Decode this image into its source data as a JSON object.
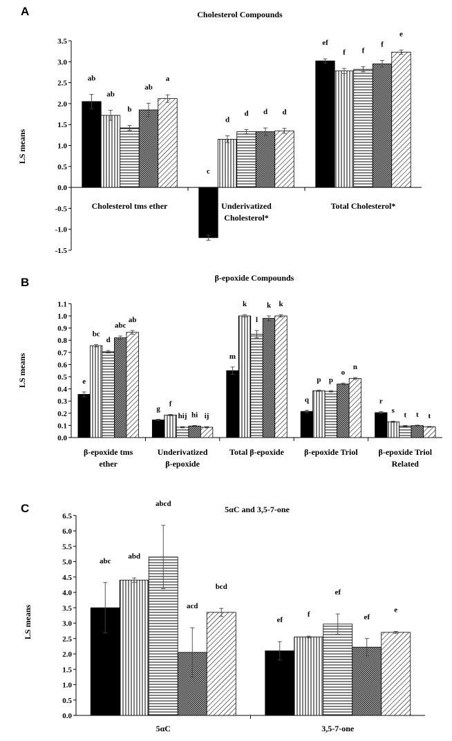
{
  "chart_data": [
    {
      "panel": "A",
      "type": "bar",
      "title": "Cholesterol Compounds",
      "ylabel": "LS means",
      "ylim": [
        -1.5,
        3.5
      ],
      "yticks": [
        "-1.5",
        "-1.0",
        "-0.5",
        "0.0",
        "0.5",
        "1.0",
        "1.5",
        "2.0",
        "2.5",
        "3.0",
        "3.5"
      ],
      "categories": [
        [
          "Cholesterol tms ether"
        ],
        [
          "Underivatized",
          "Cholesterol*"
        ],
        [
          "Total Cholesterol*"
        ]
      ],
      "values": [
        [
          2.05,
          1.72,
          1.42,
          1.85,
          2.12
        ],
        [
          -1.2,
          1.15,
          1.33,
          1.33,
          1.35
        ],
        [
          3.02,
          2.78,
          2.82,
          2.95,
          3.23
        ]
      ],
      "errors": [
        [
          0.17,
          0.12,
          0.06,
          0.16,
          0.09
        ],
        [
          0.06,
          0.08,
          0.05,
          0.09,
          0.06
        ],
        [
          0.05,
          0.06,
          0.06,
          0.08,
          0.05
        ]
      ],
      "letters": [
        [
          "ab",
          "ab",
          "b",
          "ab",
          "a"
        ],
        [
          "c",
          "d",
          "d",
          "d",
          "d"
        ],
        [
          "ef",
          "f",
          "f",
          "f",
          "e"
        ]
      ]
    },
    {
      "panel": "B",
      "type": "bar",
      "title": "β-epoxide Compounds",
      "ylabel": "LS means",
      "ylim": [
        0.0,
        1.1
      ],
      "yticks": [
        "0.0",
        "0.1",
        "0.2",
        "0.3",
        "0.4",
        "0.5",
        "0.6",
        "0.7",
        "0.8",
        "0.9",
        "1.0",
        "1.1"
      ],
      "categories": [
        [
          "β-epoxide tms",
          "ether"
        ],
        [
          "Underivatized",
          "β-epoxide"
        ],
        [
          "Total β-epoxide"
        ],
        [
          "β-epoxide Triol"
        ],
        [
          "β-epoxide Triol",
          "Related"
        ]
      ],
      "values": [
        [
          0.355,
          0.755,
          0.705,
          0.82,
          0.865
        ],
        [
          0.145,
          0.185,
          0.085,
          0.095,
          0.085
        ],
        [
          0.55,
          1.0,
          0.85,
          0.98,
          1.0
        ],
        [
          0.215,
          0.385,
          0.38,
          0.44,
          0.485
        ],
        [
          0.205,
          0.13,
          0.095,
          0.098,
          0.088
        ]
      ],
      "errors": [
        [
          0.02,
          0.01,
          0.01,
          0.015,
          0.015
        ],
        [
          0.005,
          0.005,
          0.005,
          0.005,
          0.005
        ],
        [
          0.03,
          0.01,
          0.03,
          0.02,
          0.01
        ],
        [
          0.01,
          0.005,
          0.005,
          0.008,
          0.008
        ],
        [
          0.008,
          0.005,
          0.004,
          0.004,
          0.004
        ]
      ],
      "letters": [
        [
          "e",
          "bc",
          "d",
          "abc",
          "ab"
        ],
        [
          "g",
          "f",
          "hij",
          "hi",
          "ij"
        ],
        [
          "m",
          "k",
          "l",
          "k",
          "k"
        ],
        [
          "q",
          "p",
          "p",
          "o",
          "n"
        ],
        [
          "r",
          "s",
          "t",
          "t",
          "t"
        ]
      ]
    },
    {
      "panel": "C",
      "type": "bar",
      "title": "5αC and 3,5-7-one",
      "ylabel": "LS means",
      "ylim": [
        0.0,
        6.5
      ],
      "yticks": [
        "0.0",
        "0.5",
        "1.0",
        "1.5",
        "2.0",
        "2.5",
        "3.0",
        "3.5",
        "4.0",
        "4.5",
        "5.0",
        "5.5",
        "6.0",
        "6.5"
      ],
      "categories": [
        [
          "5αC"
        ],
        [
          "3,5-7-one"
        ]
      ],
      "values": [
        [
          3.5,
          4.4,
          5.15,
          2.05,
          3.35
        ],
        [
          2.1,
          2.55,
          2.97,
          2.22,
          2.7
        ]
      ],
      "errors": [
        [
          0.82,
          0.07,
          1.03,
          0.8,
          0.13
        ],
        [
          0.3,
          0.03,
          0.33,
          0.28,
          0.03
        ]
      ],
      "letters": [
        [
          "abc",
          "abd",
          "abcd",
          "acd",
          "bcd"
        ],
        [
          "ef",
          "f",
          "ef",
          "ef",
          "e"
        ]
      ]
    }
  ]
}
